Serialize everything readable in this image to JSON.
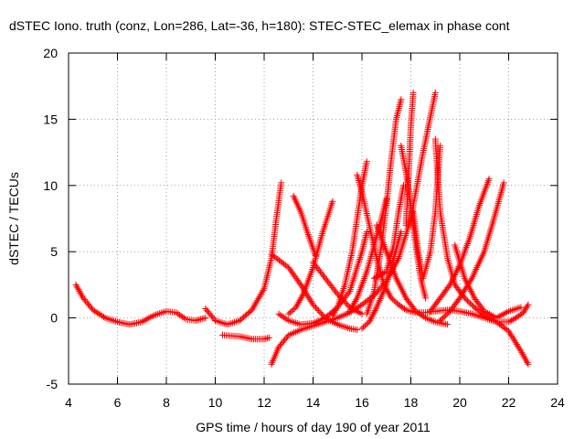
{
  "chart_data": {
    "type": "scatter",
    "title": "dSTEC Iono. truth (conz, Lon=286, Lat=-36, h=180): STEC-STEC_elemax in phase cont",
    "xlabel": "GPS time / hours of day 190 of year 2011",
    "ylabel": "dSTEC  / TECUs",
    "xlim": [
      4,
      24
    ],
    "ylim": [
      -5,
      20
    ],
    "xticks": [
      4,
      6,
      8,
      10,
      12,
      14,
      16,
      18,
      20,
      22,
      24
    ],
    "yticks": [
      -5,
      0,
      5,
      10,
      15,
      20
    ],
    "grid": true,
    "marker": "+",
    "color": "#ff0000",
    "series": [
      {
        "x": [
          4.3,
          4.6,
          5.0,
          5.5,
          6.0,
          6.5,
          7.0,
          7.5,
          8.0,
          8.4,
          8.8,
          9.2,
          9.6
        ],
        "y": [
          2.5,
          1.5,
          0.6,
          0.0,
          -0.3,
          -0.5,
          -0.3,
          0.2,
          0.5,
          0.4,
          -0.1,
          -0.2,
          0.0
        ]
      },
      {
        "x": [
          9.6,
          10.0,
          10.5,
          11.0,
          11.5,
          12.0,
          12.3,
          12.5,
          12.7
        ],
        "y": [
          0.7,
          -0.2,
          -0.5,
          -0.2,
          0.6,
          2.2,
          4.5,
          7.5,
          10.2
        ]
      },
      {
        "x": [
          10.3,
          11.0,
          11.5,
          12.0,
          12.2
        ],
        "y": [
          -1.3,
          -1.4,
          -1.6,
          -1.6,
          -1.5
        ]
      },
      {
        "x": [
          12.3,
          12.6,
          13.0,
          13.5,
          14.0,
          14.5,
          15.0,
          15.5,
          16.0,
          16.5,
          17.0,
          17.5,
          18.0,
          18.5,
          19.0
        ],
        "y": [
          -3.5,
          -2.2,
          -1.3,
          -0.9,
          -0.6,
          -0.3,
          0.0,
          0.4,
          1.0,
          1.7,
          2.8,
          4.5,
          7.5,
          12.5,
          17.0
        ]
      },
      {
        "x": [
          12.3,
          13.0,
          13.5,
          14.0,
          14.5,
          15.0,
          15.5,
          15.8
        ],
        "y": [
          4.8,
          3.8,
          2.5,
          1.0,
          0.0,
          -0.5,
          -0.8,
          -0.9
        ]
      },
      {
        "x": [
          12.6,
          13.0,
          13.5,
          14.0,
          14.5,
          15.0,
          15.5,
          16.0,
          16.2
        ],
        "y": [
          0.3,
          -0.2,
          -0.5,
          -0.4,
          0.0,
          0.8,
          2.0,
          5.0,
          6.5
        ]
      },
      {
        "x": [
          13.0,
          13.3,
          13.6,
          14.0,
          14.4,
          14.8
        ],
        "y": [
          0.3,
          0.8,
          1.8,
          3.8,
          6.5,
          8.8
        ]
      },
      {
        "x": [
          13.2,
          13.5,
          13.8,
          14.1
        ],
        "y": [
          9.2,
          8.0,
          6.3,
          4.7
        ]
      },
      {
        "x": [
          14.0,
          14.5,
          15.0,
          15.5,
          16.0
        ],
        "y": [
          4.2,
          3.0,
          1.8,
          0.8,
          0.3
        ]
      },
      {
        "x": [
          14.8,
          15.0,
          15.3,
          15.6,
          15.8,
          16.0,
          16.2
        ],
        "y": [
          0.2,
          0.8,
          2.5,
          5.0,
          7.5,
          10.0,
          11.8
        ]
      },
      {
        "x": [
          15.8,
          16.0,
          16.3,
          16.6,
          16.9,
          17.2,
          17.5,
          17.8,
          18.2,
          18.6,
          19.0,
          19.5,
          20.0,
          20.5,
          21.0,
          21.5,
          22.0,
          22.5,
          22.8
        ],
        "y": [
          10.8,
          9.5,
          7.0,
          4.5,
          2.5,
          1.5,
          1.0,
          0.6,
          0.4,
          0.4,
          0.5,
          0.6,
          0.5,
          0.3,
          0.0,
          -0.3,
          -1.0,
          -2.5,
          -3.5
        ]
      },
      {
        "x": [
          15.5,
          15.8,
          16.2,
          16.5,
          16.8,
          17.0
        ],
        "y": [
          0.5,
          1.5,
          3.5,
          5.5,
          7.5,
          9.0
        ]
      },
      {
        "x": [
          16.0,
          16.3,
          16.6,
          17.0,
          17.3,
          17.6
        ],
        "y": [
          -0.8,
          -0.3,
          0.8,
          2.5,
          4.5,
          6.5
        ]
      },
      {
        "x": [
          16.2,
          16.5,
          16.8,
          17.0,
          17.2,
          17.4,
          17.6
        ],
        "y": [
          0.3,
          2.0,
          5.5,
          8.5,
          12.0,
          15.0,
          16.5
        ]
      },
      {
        "x": [
          16.6,
          17.0,
          17.4,
          17.8,
          18.2,
          18.6,
          19.0,
          19.5
        ],
        "y": [
          7.0,
          5.0,
          3.0,
          1.5,
          0.5,
          0.0,
          -0.3,
          -0.5
        ]
      },
      {
        "x": [
          17.6,
          17.8,
          18.0,
          18.2,
          18.4,
          18.6
        ],
        "y": [
          13.0,
          11.0,
          8.5,
          5.5,
          3.0,
          1.5
        ]
      },
      {
        "x": [
          17.8,
          17.9,
          18.0,
          18.1
        ],
        "y": [
          7.0,
          10.5,
          14.5,
          17.0
        ]
      },
      {
        "x": [
          18.1,
          18.3,
          18.5,
          18.8,
          19.0,
          19.2
        ],
        "y": [
          8.0,
          5.0,
          3.0,
          5.0,
          8.0,
          13.0
        ]
      },
      {
        "x": [
          19.0,
          19.2,
          19.5,
          19.8,
          20.2,
          20.6,
          21.0,
          21.5,
          22.0,
          22.3,
          22.6,
          22.8
        ],
        "y": [
          13.5,
          8.0,
          4.5,
          2.5,
          1.5,
          0.8,
          0.2,
          -0.3,
          -0.3,
          0.0,
          0.4,
          1.0
        ]
      },
      {
        "x": [
          18.8,
          19.2,
          19.6,
          20.0,
          20.4,
          20.8,
          21.2
        ],
        "y": [
          0.5,
          1.5,
          2.5,
          4.0,
          6.0,
          8.5,
          10.5
        ]
      },
      {
        "x": [
          19.2,
          19.6,
          20.0,
          20.5,
          21.0,
          21.4,
          21.8
        ],
        "y": [
          -0.2,
          0.5,
          1.5,
          3.0,
          5.0,
          7.5,
          10.2
        ]
      },
      {
        "x": [
          19.8,
          20.2,
          20.6,
          21.0,
          21.5,
          22.0,
          22.5
        ],
        "y": [
          5.5,
          3.0,
          1.5,
          0.5,
          0.0,
          0.5,
          0.8
        ]
      },
      {
        "x": [
          16.5,
          17.0,
          17.3,
          17.5,
          17.7
        ],
        "y": [
          3.0,
          3.5,
          5.5,
          8.0,
          10.0
        ]
      }
    ]
  }
}
